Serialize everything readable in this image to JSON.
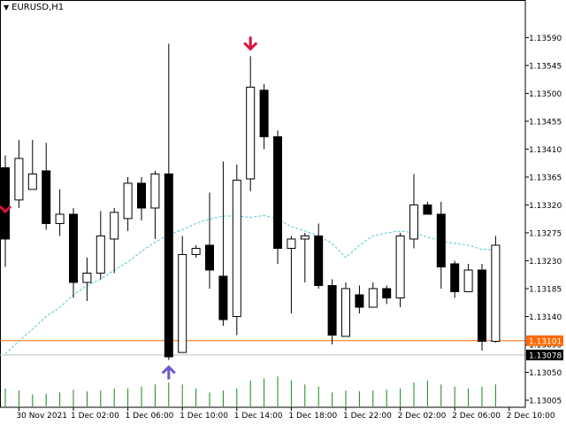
{
  "window": {
    "symbol_title": "EURUSD,H1",
    "menu_arrow": "triangle-down-icon"
  },
  "colors": {
    "bull_body": "#ffffff",
    "bear_body": "#000000",
    "wick": "#000000",
    "ma_line": "#4fc9d6",
    "bid_line": "#ff6a00",
    "ask_line": "#c0c0c0",
    "volume": "#138a13",
    "sell_arrow": "#dc143c",
    "buy_arrow": "#6a5acd"
  },
  "chart_data": {
    "type": "candlestick",
    "symbol": "EURUSD",
    "timeframe": "H1",
    "ylim": [
      1.13005,
      1.13612
    ],
    "y_ticks": [
      "1.13590",
      "1.13545",
      "1.13500",
      "1.13455",
      "1.13410",
      "1.13365",
      "1.13320",
      "1.13275",
      "1.13230",
      "1.13185",
      "1.13140",
      "1.13095",
      "1.13050",
      "1.13005"
    ],
    "x_labels": [
      {
        "index": 1,
        "label": "30 Nov 2021"
      },
      {
        "index": 5,
        "label": "1 Dec 02:00"
      },
      {
        "index": 9,
        "label": "1 Dec 06:00"
      },
      {
        "index": 13,
        "label": "1 Dec 10:00"
      },
      {
        "index": 17,
        "label": "1 Dec 14:00"
      },
      {
        "index": 21,
        "label": "1 Dec 18:00"
      },
      {
        "index": 25,
        "label": "1 Dec 22:00"
      },
      {
        "index": 29,
        "label": "2 Dec 02:00"
      },
      {
        "index": 33,
        "label": "2 Dec 06:00"
      },
      {
        "index": 37,
        "label": "2 Dec 10:00"
      }
    ],
    "candles": [
      {
        "o": 1.1338,
        "h": 1.134,
        "l": 1.1322,
        "c": 1.13265
      },
      {
        "o": 1.13328,
        "h": 1.13425,
        "l": 1.13315,
        "c": 1.13395
      },
      {
        "o": 1.13345,
        "h": 1.13425,
        "l": 1.13345,
        "c": 1.1337
      },
      {
        "o": 1.13375,
        "h": 1.1342,
        "l": 1.1328,
        "c": 1.1329
      },
      {
        "o": 1.1329,
        "h": 1.13345,
        "l": 1.1327,
        "c": 1.13305
      },
      {
        "o": 1.13305,
        "h": 1.13315,
        "l": 1.1317,
        "c": 1.13195
      },
      {
        "o": 1.13195,
        "h": 1.13235,
        "l": 1.13165,
        "c": 1.1321
      },
      {
        "o": 1.1321,
        "h": 1.1331,
        "l": 1.132,
        "c": 1.1327
      },
      {
        "o": 1.13265,
        "h": 1.13315,
        "l": 1.1321,
        "c": 1.13308
      },
      {
        "o": 1.13298,
        "h": 1.13365,
        "l": 1.13278,
        "c": 1.13355
      },
      {
        "o": 1.13355,
        "h": 1.13365,
        "l": 1.13295,
        "c": 1.13315
      },
      {
        "o": 1.13315,
        "h": 1.13375,
        "l": 1.13265,
        "c": 1.1337
      },
      {
        "o": 1.1337,
        "h": 1.1358,
        "l": 1.1307,
        "c": 1.13075
      },
      {
        "o": 1.13082,
        "h": 1.1327,
        "l": 1.13082,
        "c": 1.1324
      },
      {
        "o": 1.1324,
        "h": 1.13255,
        "l": 1.13235,
        "c": 1.1325
      },
      {
        "o": 1.13255,
        "h": 1.1334,
        "l": 1.13185,
        "c": 1.13215
      },
      {
        "o": 1.13205,
        "h": 1.1339,
        "l": 1.13125,
        "c": 1.13135
      },
      {
        "o": 1.1314,
        "h": 1.13385,
        "l": 1.1311,
        "c": 1.1336
      },
      {
        "o": 1.13362,
        "h": 1.1356,
        "l": 1.13342,
        "c": 1.1351
      },
      {
        "o": 1.13505,
        "h": 1.13515,
        "l": 1.1341,
        "c": 1.1343
      },
      {
        "o": 1.1343,
        "h": 1.1344,
        "l": 1.13225,
        "c": 1.1325
      },
      {
        "o": 1.1325,
        "h": 1.1327,
        "l": 1.13145,
        "c": 1.13265
      },
      {
        "o": 1.13265,
        "h": 1.13275,
        "l": 1.13195,
        "c": 1.1327
      },
      {
        "o": 1.1327,
        "h": 1.1329,
        "l": 1.13185,
        "c": 1.1319
      },
      {
        "o": 1.1319,
        "h": 1.132,
        "l": 1.13095,
        "c": 1.1311
      },
      {
        "o": 1.13108,
        "h": 1.13195,
        "l": 1.13108,
        "c": 1.13185
      },
      {
        "o": 1.13175,
        "h": 1.1319,
        "l": 1.13145,
        "c": 1.13155
      },
      {
        "o": 1.13155,
        "h": 1.13195,
        "l": 1.13155,
        "c": 1.13185
      },
      {
        "o": 1.13185,
        "h": 1.1319,
        "l": 1.1316,
        "c": 1.1317
      },
      {
        "o": 1.1317,
        "h": 1.13275,
        "l": 1.13155,
        "c": 1.1327
      },
      {
        "o": 1.13265,
        "h": 1.1337,
        "l": 1.1325,
        "c": 1.1332
      },
      {
        "o": 1.1332,
        "h": 1.13325,
        "l": 1.1331,
        "c": 1.13305
      },
      {
        "o": 1.13305,
        "h": 1.13325,
        "l": 1.13185,
        "c": 1.1322
      },
      {
        "o": 1.13225,
        "h": 1.1323,
        "l": 1.1317,
        "c": 1.1318
      },
      {
        "o": 1.1318,
        "h": 1.13225,
        "l": 1.1318,
        "c": 1.13215
      },
      {
        "o": 1.13215,
        "h": 1.13225,
        "l": 1.13085,
        "c": 1.131
      },
      {
        "o": 1.131,
        "h": 1.1327,
        "l": 1.13098,
        "c": 1.13255
      }
    ],
    "moving_average": [
      1.1308,
      1.131,
      1.1312,
      1.1314,
      1.13155,
      1.13175,
      1.1319,
      1.132,
      1.13215,
      1.13228,
      1.13245,
      1.1326,
      1.13272,
      1.1328,
      1.1329,
      1.13297,
      1.13302,
      1.13302,
      1.133,
      1.13303,
      1.13297,
      1.13285,
      1.13278,
      1.1327,
      1.13258,
      1.13235,
      1.13255,
      1.1327,
      1.13275,
      1.13278,
      1.13275,
      1.13268,
      1.13262,
      1.13258,
      1.13255,
      1.13248,
      1.13248
    ],
    "volumes": [
      0.45,
      0.4,
      0.3,
      0.32,
      0.35,
      0.42,
      0.38,
      0.4,
      0.45,
      0.45,
      0.5,
      0.55,
      0.6,
      0.55,
      0.45,
      0.35,
      0.4,
      0.45,
      0.65,
      0.7,
      0.75,
      0.65,
      0.55,
      0.5,
      0.35,
      0.4,
      0.38,
      0.4,
      0.42,
      0.45,
      0.6,
      0.65,
      0.55,
      0.5,
      0.45,
      0.5,
      0.55
    ],
    "bid_price_label": "1.13101",
    "ask_price_label": "1.13078",
    "bid_price": 1.13101,
    "ask_price": 1.13078,
    "signals": [
      {
        "type": "sell",
        "index": 18
      },
      {
        "type": "buy",
        "index": 12
      },
      {
        "type": "sell_partial",
        "index": 0
      }
    ]
  }
}
